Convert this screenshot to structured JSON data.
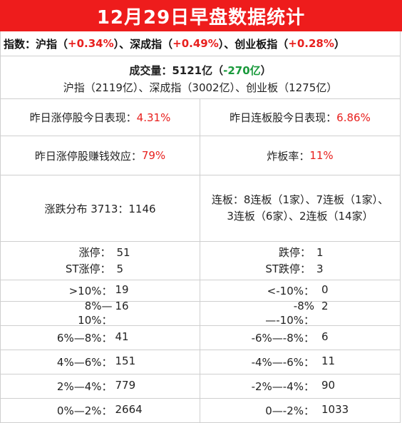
{
  "title": "12月29日早盘数据统计",
  "index_line": {
    "prefix": "指数：沪指（",
    "sh": "+0.34%",
    "mid1": "）、深成指（",
    "sz": "+0.49%",
    "mid2": "）、创业板指（",
    "cy": "+0.28%",
    "suffix": "）"
  },
  "volume": {
    "label": "成交量：5121亿（",
    "change": "-270亿",
    "close": "）",
    "breakdown": "沪指（2119亿）、深成指（3002亿）、创业板（1275亿）"
  },
  "row1": {
    "left_label": "昨日涨停股今日表现：",
    "left_value": "4.31%",
    "right_label": "昨日连板股今日表现：",
    "right_value": "6.86%"
  },
  "row2": {
    "left_label": "昨日涨停股赚钱效应：",
    "left_value": "79%",
    "right_label": "炸板率：",
    "right_value": "11%"
  },
  "row3": {
    "left_text": "涨跌分布 3713：1146",
    "right_line1": "连板：8连板（1家）、7连板（1家）、",
    "right_line2": "3连板（6家）、2连板（14家）"
  },
  "limits": {
    "up_label": "涨停：",
    "up_value": "51",
    "st_up_label": "ST涨停：",
    "st_up_value": "5",
    "down_label": "跌停：",
    "down_value": "1",
    "st_down_label": "ST跌停：",
    "st_down_value": "3"
  },
  "distribution": [
    {
      "up_label": ">10%：",
      "up_value": "19",
      "down_label": "<-10%：",
      "down_value": "0"
    },
    {
      "up_label": "8%—10%：",
      "up_value": "16",
      "down_label": "-8%—-10%：",
      "down_value": "2"
    },
    {
      "up_label": "6%—8%：",
      "up_value": "41",
      "down_label": "-6%—-8%：",
      "down_value": "6"
    },
    {
      "up_label": "4%—6%：",
      "up_value": "151",
      "down_label": "-4%—-6%：",
      "down_value": "11"
    },
    {
      "up_label": "2%—4%：",
      "up_value": "779",
      "down_label": "-2%—-4%：",
      "down_value": "90"
    },
    {
      "up_label": "0%—2%：",
      "up_value": "2664",
      "down_label": "0—-2%：",
      "down_value": "1033"
    }
  ],
  "colors": {
    "title_bg": "#ee1c1c",
    "up": "#e8201e",
    "down": "#1a9a3c",
    "border": "#cfcfcf"
  }
}
